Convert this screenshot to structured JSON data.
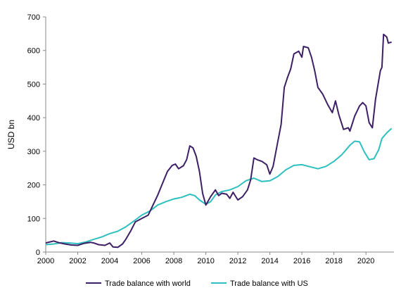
{
  "chart_data": {
    "type": "line",
    "title": "",
    "xlabel": "",
    "ylabel": "USD bn",
    "xlim": [
      2000,
      2021.75
    ],
    "ylim": [
      0,
      700
    ],
    "x_ticks": [
      2000,
      2002,
      2004,
      2006,
      2008,
      2010,
      2012,
      2014,
      2016,
      2018,
      2020
    ],
    "y_ticks": [
      0,
      100,
      200,
      300,
      400,
      500,
      600,
      700
    ],
    "grid": false,
    "legend_position": "bottom",
    "series": [
      {
        "name": "Trade balance with world",
        "color": "#3d1f66",
        "points": [
          [
            2000.0,
            27
          ],
          [
            2000.5,
            33
          ],
          [
            2000.8,
            28
          ],
          [
            2001.2,
            24
          ],
          [
            2001.6,
            21
          ],
          [
            2002.0,
            20
          ],
          [
            2002.4,
            26
          ],
          [
            2002.8,
            29
          ],
          [
            2003.0,
            27
          ],
          [
            2003.3,
            22
          ],
          [
            2003.7,
            20
          ],
          [
            2004.0,
            27
          ],
          [
            2004.2,
            15
          ],
          [
            2004.5,
            14
          ],
          [
            2004.8,
            24
          ],
          [
            2005.0,
            38
          ],
          [
            2005.3,
            62
          ],
          [
            2005.6,
            90
          ],
          [
            2006.0,
            100
          ],
          [
            2006.4,
            110
          ],
          [
            2006.7,
            140
          ],
          [
            2007.0,
            170
          ],
          [
            2007.3,
            205
          ],
          [
            2007.6,
            240
          ],
          [
            2007.9,
            258
          ],
          [
            2008.1,
            262
          ],
          [
            2008.3,
            248
          ],
          [
            2008.6,
            257
          ],
          [
            2008.8,
            275
          ],
          [
            2009.0,
            316
          ],
          [
            2009.2,
            310
          ],
          [
            2009.4,
            285
          ],
          [
            2009.6,
            240
          ],
          [
            2009.8,
            175
          ],
          [
            2010.0,
            140
          ],
          [
            2010.3,
            165
          ],
          [
            2010.6,
            185
          ],
          [
            2010.8,
            168
          ],
          [
            2011.0,
            175
          ],
          [
            2011.3,
            172
          ],
          [
            2011.5,
            160
          ],
          [
            2011.7,
            178
          ],
          [
            2012.0,
            155
          ],
          [
            2012.3,
            165
          ],
          [
            2012.6,
            185
          ],
          [
            2012.8,
            215
          ],
          [
            2013.0,
            280
          ],
          [
            2013.2,
            275
          ],
          [
            2013.5,
            270
          ],
          [
            2013.8,
            260
          ],
          [
            2014.0,
            232
          ],
          [
            2014.2,
            255
          ],
          [
            2014.5,
            330
          ],
          [
            2014.7,
            380
          ],
          [
            2014.9,
            490
          ],
          [
            2015.1,
            520
          ],
          [
            2015.3,
            545
          ],
          [
            2015.5,
            590
          ],
          [
            2015.8,
            598
          ],
          [
            2016.0,
            580
          ],
          [
            2016.1,
            612
          ],
          [
            2016.4,
            608
          ],
          [
            2016.6,
            580
          ],
          [
            2016.8,
            540
          ],
          [
            2017.0,
            490
          ],
          [
            2017.3,
            470
          ],
          [
            2017.6,
            440
          ],
          [
            2017.9,
            415
          ],
          [
            2018.1,
            450
          ],
          [
            2018.3,
            410
          ],
          [
            2018.6,
            365
          ],
          [
            2018.9,
            370
          ],
          [
            2019.0,
            360
          ],
          [
            2019.3,
            405
          ],
          [
            2019.6,
            435
          ],
          [
            2019.8,
            445
          ],
          [
            2020.0,
            435
          ],
          [
            2020.2,
            385
          ],
          [
            2020.4,
            370
          ],
          [
            2020.6,
            455
          ],
          [
            2020.9,
            540
          ],
          [
            2021.0,
            550
          ],
          [
            2021.1,
            648
          ],
          [
            2021.3,
            640
          ],
          [
            2021.4,
            622
          ],
          [
            2021.6,
            625
          ]
        ]
      },
      {
        "name": "Trade balance with US",
        "color": "#2ebfbf",
        "points": [
          [
            2000.0,
            22
          ],
          [
            2000.5,
            24
          ],
          [
            2001.0,
            28
          ],
          [
            2001.5,
            27
          ],
          [
            2002.0,
            25
          ],
          [
            2002.5,
            30
          ],
          [
            2003.0,
            38
          ],
          [
            2003.5,
            45
          ],
          [
            2004.0,
            55
          ],
          [
            2004.5,
            62
          ],
          [
            2005.0,
            75
          ],
          [
            2005.5,
            92
          ],
          [
            2006.0,
            110
          ],
          [
            2006.5,
            122
          ],
          [
            2007.0,
            140
          ],
          [
            2007.5,
            150
          ],
          [
            2008.0,
            158
          ],
          [
            2008.5,
            163
          ],
          [
            2009.0,
            172
          ],
          [
            2009.3,
            168
          ],
          [
            2009.6,
            155
          ],
          [
            2010.0,
            142
          ],
          [
            2010.3,
            150
          ],
          [
            2010.6,
            170
          ],
          [
            2011.0,
            180
          ],
          [
            2011.5,
            185
          ],
          [
            2012.0,
            195
          ],
          [
            2012.5,
            212
          ],
          [
            2013.0,
            220
          ],
          [
            2013.5,
            210
          ],
          [
            2014.0,
            212
          ],
          [
            2014.5,
            225
          ],
          [
            2015.0,
            245
          ],
          [
            2015.5,
            258
          ],
          [
            2016.0,
            260
          ],
          [
            2016.5,
            254
          ],
          [
            2017.0,
            248
          ],
          [
            2017.5,
            255
          ],
          [
            2018.0,
            270
          ],
          [
            2018.5,
            290
          ],
          [
            2019.0,
            318
          ],
          [
            2019.3,
            330
          ],
          [
            2019.6,
            328
          ],
          [
            2019.9,
            298
          ],
          [
            2020.2,
            275
          ],
          [
            2020.5,
            278
          ],
          [
            2020.8,
            305
          ],
          [
            2021.0,
            338
          ],
          [
            2021.3,
            355
          ],
          [
            2021.6,
            368
          ]
        ]
      }
    ]
  }
}
